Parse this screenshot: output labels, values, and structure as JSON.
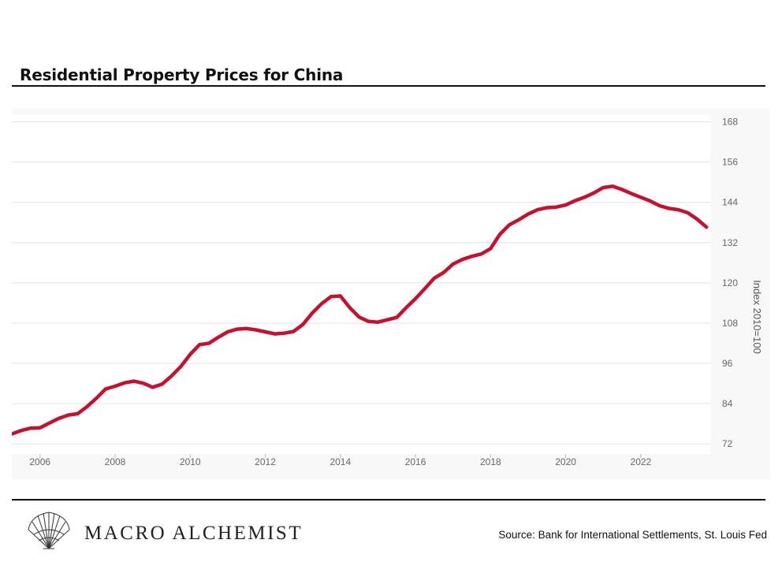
{
  "chart_data": {
    "type": "line",
    "title": "Residential Property Prices for China",
    "xlabel": "",
    "ylabel": "Index 2010=100",
    "ylim": [
      69,
      170
    ],
    "xlim": [
      2005.25,
      2023.85
    ],
    "y_ticks": [
      72,
      84,
      96,
      108,
      120,
      132,
      144,
      156,
      168
    ],
    "x_ticks": [
      2006,
      2008,
      2010,
      2012,
      2014,
      2016,
      2018,
      2020,
      2022
    ],
    "series": [
      {
        "name": "Residential Property Prices for China",
        "color": "#c8102e",
        "x": [
          2005.25,
          2005.5,
          2005.75,
          2006.0,
          2006.25,
          2006.5,
          2006.75,
          2007.0,
          2007.25,
          2007.5,
          2007.75,
          2008.0,
          2008.25,
          2008.5,
          2008.75,
          2009.0,
          2009.25,
          2009.5,
          2009.75,
          2010.0,
          2010.25,
          2010.5,
          2010.75,
          2011.0,
          2011.25,
          2011.5,
          2011.75,
          2012.0,
          2012.25,
          2012.5,
          2012.75,
          2013.0,
          2013.25,
          2013.5,
          2013.75,
          2014.0,
          2014.25,
          2014.5,
          2014.75,
          2015.0,
          2015.25,
          2015.5,
          2015.75,
          2016.0,
          2016.25,
          2016.5,
          2016.75,
          2017.0,
          2017.25,
          2017.5,
          2017.75,
          2018.0,
          2018.25,
          2018.5,
          2018.75,
          2019.0,
          2019.25,
          2019.5,
          2019.75,
          2020.0,
          2020.25,
          2020.5,
          2020.75,
          2021.0,
          2021.25,
          2021.5,
          2021.75,
          2022.0,
          2022.25,
          2022.5,
          2022.75,
          2023.0,
          2023.25,
          2023.5,
          2023.75
        ],
        "values": [
          75.0,
          76.0,
          76.7,
          76.8,
          78.2,
          79.6,
          80.6,
          81.0,
          83.1,
          85.6,
          88.4,
          89.2,
          90.2,
          90.7,
          90.1,
          88.9,
          89.8,
          92.2,
          95.1,
          98.7,
          101.6,
          102.0,
          103.8,
          105.4,
          106.2,
          106.4,
          106.0,
          105.4,
          104.8,
          105.0,
          105.5,
          107.6,
          111.0,
          113.8,
          115.9,
          116.1,
          112.6,
          109.8,
          108.5,
          108.3,
          109.0,
          109.7,
          112.6,
          115.3,
          118.3,
          121.4,
          123.1,
          125.6,
          127.0,
          127.9,
          128.6,
          130.2,
          134.5,
          137.3,
          138.8,
          140.5,
          141.8,
          142.4,
          142.6,
          143.2,
          144.5,
          145.5,
          146.8,
          148.4,
          148.8,
          147.8,
          146.6,
          145.5,
          144.4,
          143.0,
          142.2,
          141.8,
          140.9,
          139.0,
          136.6
        ]
      }
    ]
  },
  "source_text": "Source: Bank for International Settlements, St. Louis Fed",
  "logo": {
    "name": "MACRO ALCHEMIST"
  }
}
